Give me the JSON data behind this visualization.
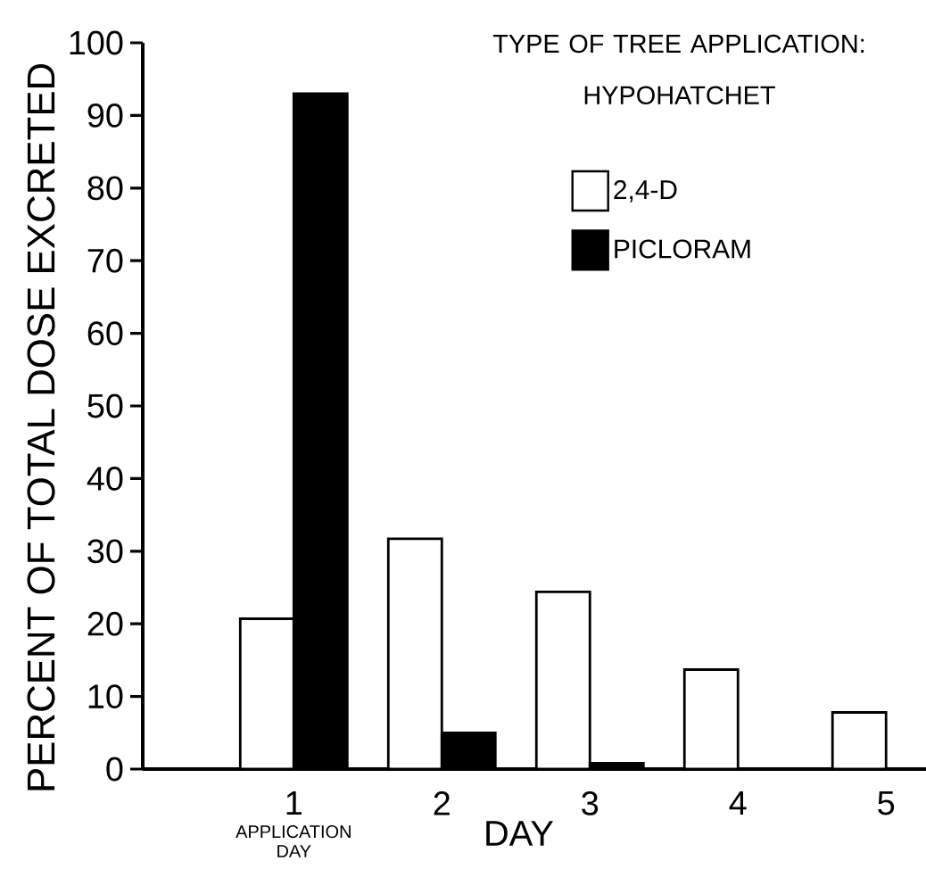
{
  "chart_data": {
    "type": "bar",
    "xlabel": "DAY",
    "ylabel": "PERCENT OF TOTAL DOSE EXCRETED",
    "legend_title": "TYPE OF TREE APPLICATION: HYPOHATCHET",
    "categories": [
      "1",
      "2",
      "3",
      "4",
      "5"
    ],
    "series": [
      {
        "name": "2,4-D",
        "color": "#ffffff",
        "values": [
          20.7,
          31.7,
          24.4,
          13.7,
          7.8
        ]
      },
      {
        "name": "PICLORAM",
        "color": "#000000",
        "values": [
          93.0,
          5.0,
          0.8,
          null,
          null
        ]
      }
    ],
    "ylim": [
      0,
      100
    ],
    "yticks": [
      0,
      10,
      20,
      30,
      40,
      50,
      60,
      70,
      80,
      90,
      100
    ],
    "grid": false,
    "legend": "top right",
    "annotations": [
      "APPLICATION DAY"
    ]
  }
}
